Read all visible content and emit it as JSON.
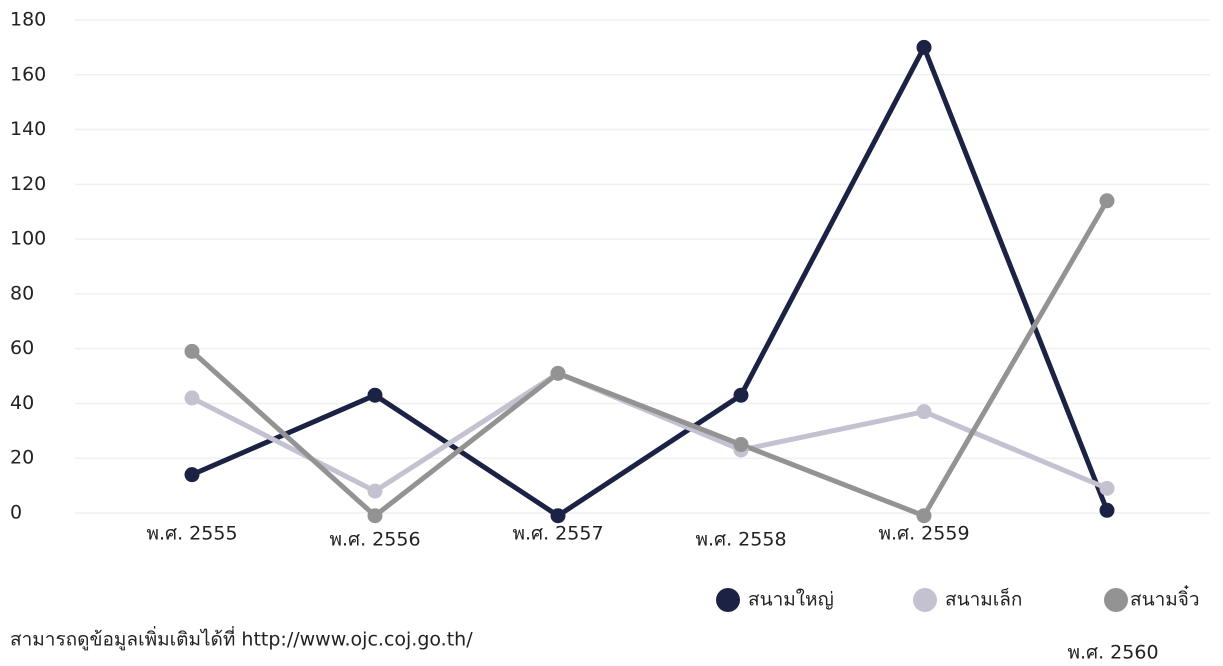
{
  "chart_data": {
    "type": "line",
    "categories": [
      "พ.ศ. 2555",
      "พ.ศ. 2556",
      "พ.ศ. 2557",
      "พ.ศ. 2558",
      "พ.ศ. 2559",
      "พ.ศ. 2560"
    ],
    "series": [
      {
        "name": "สนามใหญ่",
        "color": "#1c2244",
        "values": [
          14,
          43,
          -1,
          43,
          170,
          1
        ]
      },
      {
        "name": "สนามเล็ก",
        "color": "#c4c2d0",
        "values": [
          42,
          8,
          51,
          23,
          37,
          9
        ]
      },
      {
        "name": "สนามจิ๋ว",
        "color": "#939393",
        "values": [
          59,
          -1,
          51,
          25,
          -1,
          114
        ]
      }
    ],
    "ylim": [
      0,
      180
    ],
    "yticks": [
      0,
      20,
      40,
      60,
      80,
      100,
      120,
      140,
      160,
      180
    ],
    "grid": true,
    "legend": "bottom-right",
    "footnote": "สามารถดูข้อมูลเพิ่มเติมได้ที่ http://www.ojc.coj.go.th/"
  }
}
